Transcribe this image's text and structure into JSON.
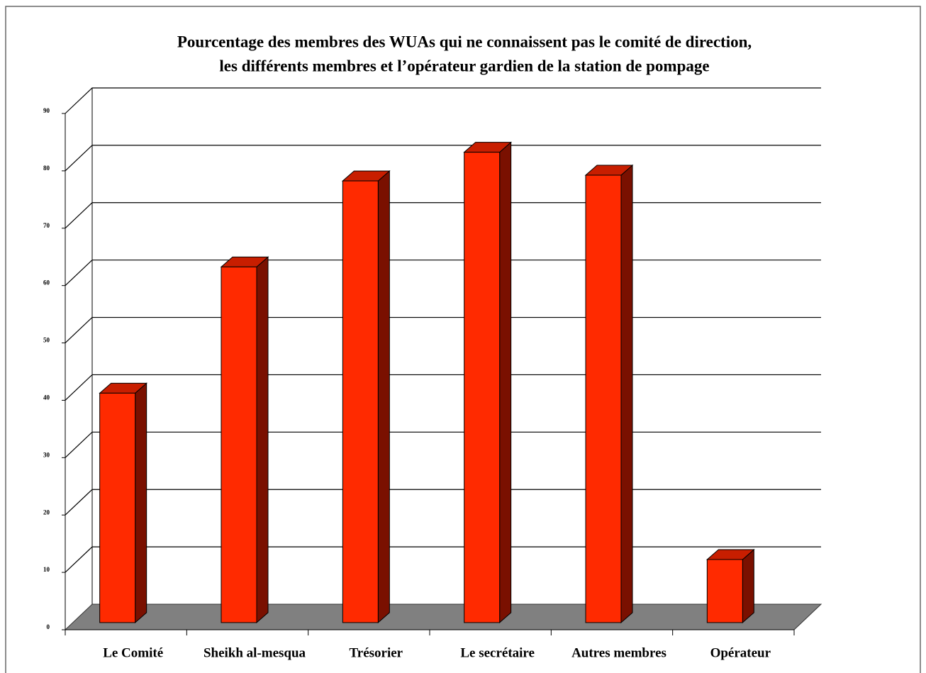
{
  "chart_data": {
    "type": "bar3d",
    "title": [
      "Pourcentage des membres des WUAs qui ne connaissent pas le comité de direction,",
      "les différents membres et l’opérateur gardien de la station de pompage"
    ],
    "categories": [
      "Le Comité",
      "Sheikh al-mesqua",
      "Trésorier",
      "Le secrétaire",
      "Autres membres",
      "Opérateur"
    ],
    "values": [
      40,
      62,
      77,
      82,
      78,
      11
    ],
    "color": "#ff2a00",
    "side_color": "#7a1000",
    "top_color": "#c81e00",
    "floor_color": "#808080",
    "ylim": [
      0,
      90
    ],
    "yticks": [
      0,
      10,
      20,
      30,
      40,
      50,
      60,
      70,
      80,
      90
    ],
    "grid": true
  }
}
